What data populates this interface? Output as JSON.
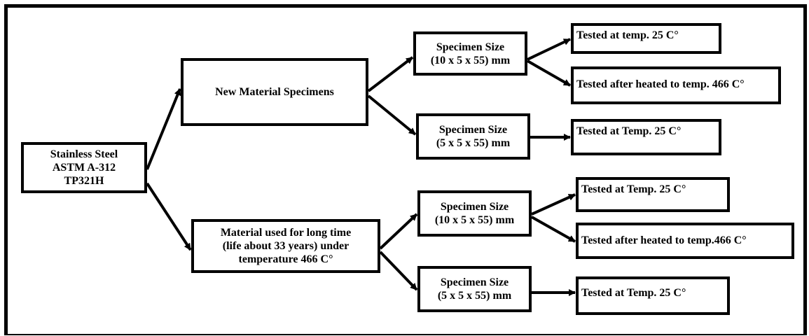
{
  "nodes": [
    {
      "lines": [
        "Stainless Steel",
        "ASTM A-312",
        "TP321H"
      ]
    },
    {
      "lines": [
        "New Material Specimens"
      ]
    },
    {
      "lines": [
        "Material used for long time",
        "(life about 33 years) under",
        "temperature 466 C°"
      ]
    },
    {
      "lines": [
        "Specimen Size",
        "(10 x 5 x 55) mm"
      ]
    },
    {
      "lines": [
        "Specimen Size",
        "(5 x 5 x 55) mm"
      ]
    },
    {
      "lines": [
        "Specimen Size",
        "(10 x 5 x 55) mm"
      ]
    },
    {
      "lines": [
        "Specimen Size",
        "(5 x 5 x 55) mm"
      ]
    },
    {
      "lines": [
        "Tested at temp. 25 C°"
      ]
    },
    {
      "lines": [
        "Tested after heated to temp. 466 C°"
      ]
    },
    {
      "lines": [
        "Tested at Temp. 25 C°"
      ]
    },
    {
      "lines": [
        "Tested at Temp. 25 C°"
      ]
    },
    {
      "lines": [
        "Tested after heated to temp.466 C°"
      ]
    },
    {
      "lines": [
        "Tested at Temp. 25 C°"
      ]
    }
  ]
}
